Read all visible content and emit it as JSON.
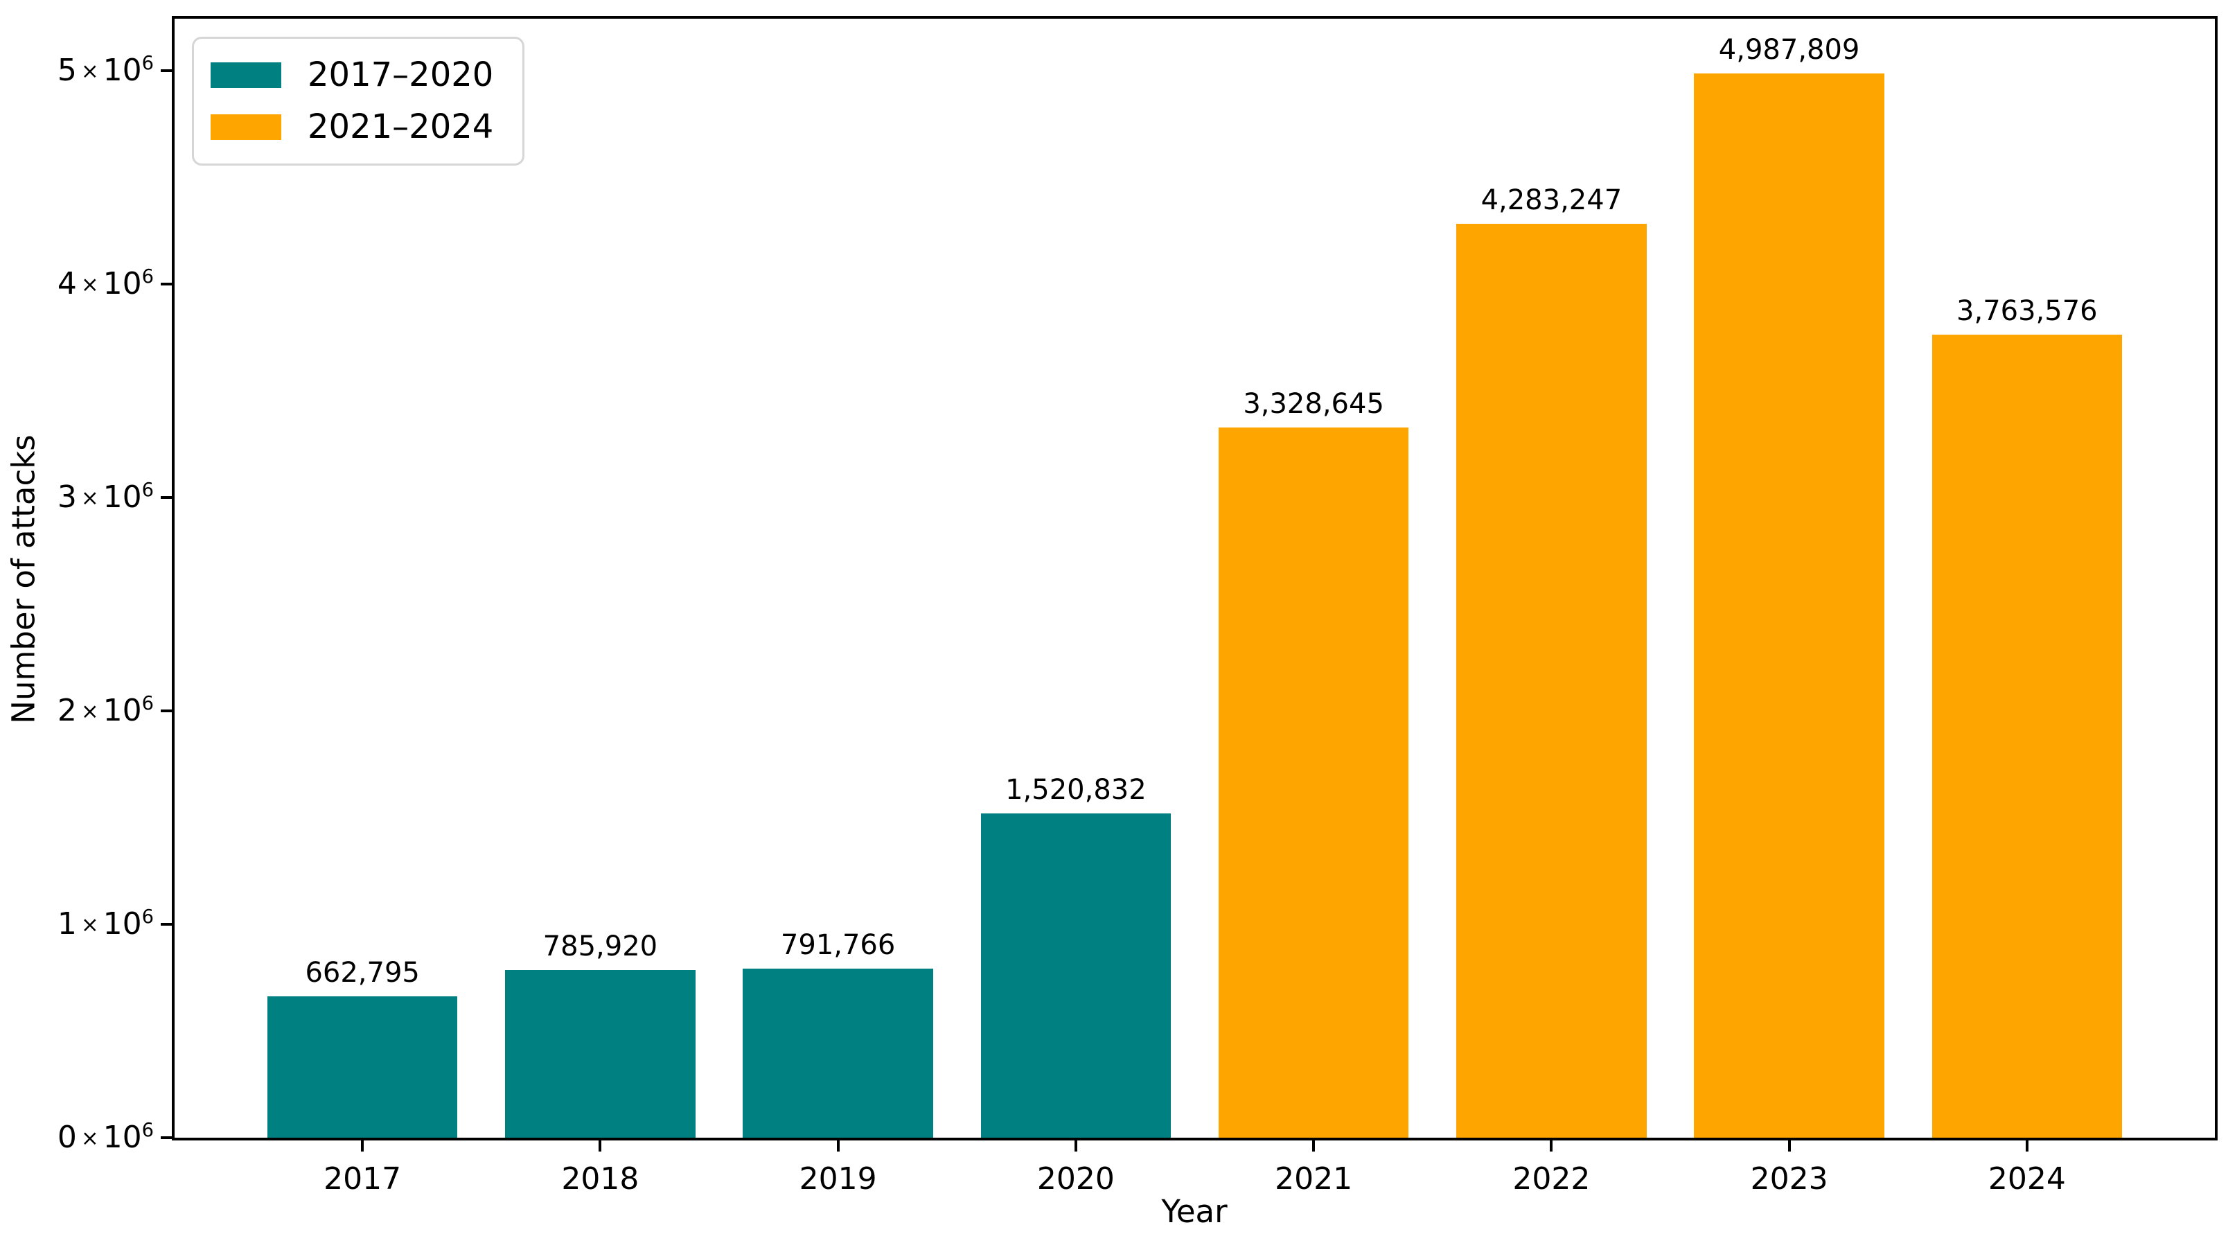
{
  "figure": {
    "background": "#ffffff",
    "frame_color": "#000000"
  },
  "chart_data": {
    "type": "bar",
    "title": "",
    "xlabel": "Year",
    "ylabel": "Number of attacks",
    "categories": [
      "2017",
      "2018",
      "2019",
      "2020",
      "2021",
      "2022",
      "2023",
      "2024"
    ],
    "values": [
      662795,
      785920,
      791766,
      1520832,
      3328645,
      4283247,
      4987809,
      3763576
    ],
    "value_labels": [
      "662,795",
      "785,920",
      "791,766",
      "1,520,832",
      "3,328,645",
      "4,283,247",
      "4,987,809",
      "3,763,576"
    ],
    "bar_colors": [
      "#008080",
      "#008080",
      "#008080",
      "#008080",
      "#FFA500",
      "#FFA500",
      "#FFA500",
      "#FFA500"
    ],
    "series": [
      {
        "name": "2017–2020",
        "color": "#008080",
        "categories": [
          "2017",
          "2018",
          "2019",
          "2020"
        ],
        "values": [
          662795,
          785920,
          791766,
          1520832
        ]
      },
      {
        "name": "2021–2024",
        "color": "#FFA500",
        "categories": [
          "2021",
          "2022",
          "2023",
          "2024"
        ],
        "values": [
          3328645,
          4283247,
          4987809,
          3763576
        ]
      }
    ],
    "ylim": [
      0,
      5243500
    ],
    "y_ticks": [
      {
        "value": 0,
        "mantissa": "0",
        "exponent": "6"
      },
      {
        "value": 1000000,
        "mantissa": "1",
        "exponent": "6"
      },
      {
        "value": 2000000,
        "mantissa": "2",
        "exponent": "6"
      },
      {
        "value": 3000000,
        "mantissa": "3",
        "exponent": "6"
      },
      {
        "value": 4000000,
        "mantissa": "4",
        "exponent": "6"
      },
      {
        "value": 5000000,
        "mantissa": "5",
        "exponent": "6"
      }
    ],
    "times_symbol": "×",
    "base": "10",
    "grid": false,
    "legend_position": "upper left"
  }
}
